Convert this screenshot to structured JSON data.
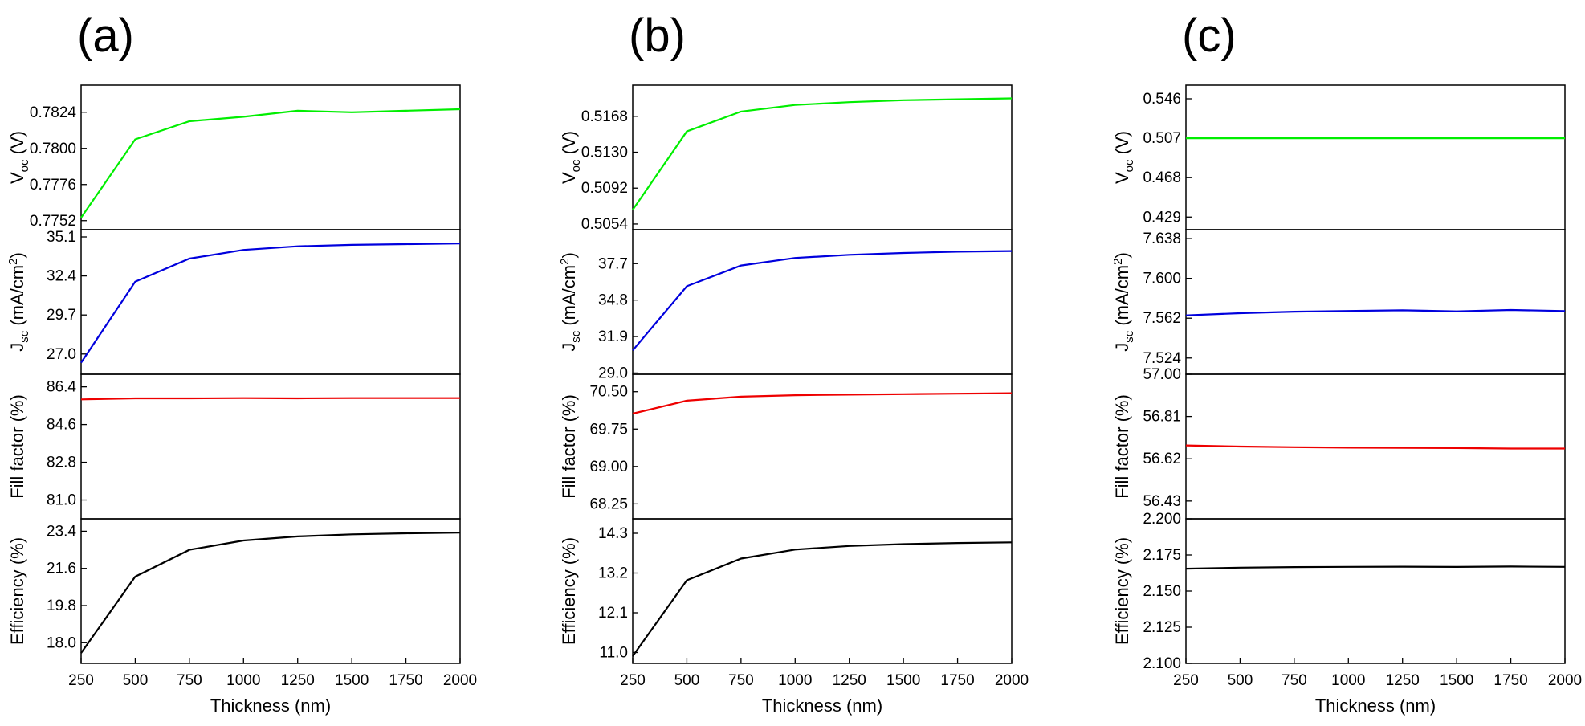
{
  "chart_data": [
    {
      "panel": "(a)",
      "type": "line",
      "xlabel": "Thickness (nm)",
      "x": [
        250,
        500,
        750,
        1000,
        1250,
        1500,
        1750,
        2000
      ],
      "xticks": [
        "250",
        "500",
        "750",
        "1000",
        "1250",
        "1500",
        "1750",
        "2000"
      ],
      "xlim": [
        250,
        2000
      ],
      "subplots": [
        {
          "quantity": "Voc",
          "ylabel_main": "V",
          "ylabel_sub": "oc",
          "ylabel_rest": " (V)",
          "color": "#00ee00",
          "ylim": [
            0.7746,
            0.7842
          ],
          "ticks": [
            0.7752,
            0.7776,
            0.78,
            0.7824
          ],
          "tick_labels": [
            "0.7752",
            "0.7776",
            "0.7800",
            "0.7824"
          ],
          "values": [
            0.7754,
            0.7806,
            0.7818,
            0.7821,
            0.7825,
            0.7824,
            0.7825,
            0.7826
          ]
        },
        {
          "quantity": "Jsc",
          "ylabel_main": "J",
          "ylabel_sub": "sc",
          "ylabel_rest": " (mA/cm",
          "ylabel_sup": "2",
          "ylabel_end": ")",
          "color": "#0000dd",
          "ylim": [
            25.6,
            35.6
          ],
          "ticks": [
            27.0,
            29.7,
            32.4,
            35.1
          ],
          "tick_labels": [
            "27.0",
            "29.7",
            "32.4",
            "35.1"
          ],
          "values": [
            26.4,
            32.0,
            33.6,
            34.2,
            34.45,
            34.55,
            34.6,
            34.65
          ]
        },
        {
          "quantity": "Fill factor",
          "ylabel_main": "Fill factor (%)",
          "color": "#ee0000",
          "ylim": [
            80.1,
            87.0
          ],
          "ticks": [
            81.0,
            82.8,
            84.6,
            86.4
          ],
          "tick_labels": [
            "81.0",
            "82.8",
            "84.6",
            "86.4"
          ],
          "values": [
            85.8,
            85.85,
            85.85,
            85.86,
            85.85,
            85.86,
            85.86,
            85.86
          ]
        },
        {
          "quantity": "Efficiency",
          "ylabel_main": "Efficiency (%)",
          "color": "#000000",
          "ylim": [
            17.0,
            24.0
          ],
          "ticks": [
            18.0,
            19.8,
            21.6,
            23.4
          ],
          "tick_labels": [
            "18.0",
            "19.8",
            "21.6",
            "23.4"
          ],
          "values": [
            17.5,
            21.2,
            22.5,
            22.95,
            23.15,
            23.25,
            23.3,
            23.33
          ]
        }
      ]
    },
    {
      "panel": "(b)",
      "type": "line",
      "xlabel": "Thickness (nm)",
      "x": [
        250,
        500,
        750,
        1000,
        1250,
        1500,
        1750,
        2000
      ],
      "xticks": [
        "250",
        "500",
        "750",
        "1000",
        "1250",
        "1500",
        "1750",
        "2000"
      ],
      "xlim": [
        250,
        2000
      ],
      "subplots": [
        {
          "quantity": "Voc",
          "ylabel_main": "V",
          "ylabel_sub": "oc",
          "ylabel_rest": " (V)",
          "color": "#00ee00",
          "ylim": [
            0.5048,
            0.5201
          ],
          "ticks": [
            0.5054,
            0.5092,
            0.513,
            0.5168
          ],
          "tick_labels": [
            "0.5054",
            "0.5092",
            "0.5130",
            "0.5168"
          ],
          "values": [
            0.5069,
            0.5152,
            0.5173,
            0.518,
            0.5183,
            0.5185,
            0.5186,
            0.5187
          ]
        },
        {
          "quantity": "Jsc",
          "ylabel_main": "J",
          "ylabel_sub": "sc",
          "ylabel_rest": " (mA/cm",
          "ylabel_sup": "2",
          "ylabel_end": ")",
          "color": "#0000dd",
          "ylim": [
            28.9,
            40.4
          ],
          "ticks": [
            29.0,
            31.9,
            34.8,
            37.7
          ],
          "tick_labels": [
            "29.0",
            "31.9",
            "34.8",
            "37.7"
          ],
          "values": [
            30.8,
            35.9,
            37.55,
            38.15,
            38.4,
            38.55,
            38.65,
            38.7
          ]
        },
        {
          "quantity": "Fill factor",
          "ylabel_main": "Fill factor (%)",
          "color": "#ee0000",
          "ylim": [
            67.95,
            70.85
          ],
          "ticks": [
            68.25,
            69.0,
            69.75,
            70.5
          ],
          "tick_labels": [
            "68.25",
            "69.00",
            "69.75",
            "70.50"
          ],
          "values": [
            70.06,
            70.32,
            70.4,
            70.43,
            70.44,
            70.45,
            70.46,
            70.47
          ]
        },
        {
          "quantity": "Efficiency",
          "ylabel_main": "Efficiency (%)",
          "color": "#000000",
          "ylim": [
            10.7,
            14.7
          ],
          "ticks": [
            11.0,
            12.1,
            13.2,
            14.3
          ],
          "tick_labels": [
            "11.0",
            "12.1",
            "13.2",
            "14.3"
          ],
          "values": [
            10.9,
            13.0,
            13.6,
            13.85,
            13.95,
            14.0,
            14.03,
            14.05
          ]
        }
      ]
    },
    {
      "panel": "(c)",
      "type": "line",
      "xlabel": "Thickness (nm)",
      "x": [
        250,
        500,
        750,
        1000,
        1250,
        1500,
        1750,
        2000
      ],
      "xticks": [
        "250",
        "500",
        "750",
        "1000",
        "1250",
        "1500",
        "1750",
        "2000"
      ],
      "xlim": [
        250,
        2000
      ],
      "subplots": [
        {
          "quantity": "Voc",
          "ylabel_main": "V",
          "ylabel_sub": "oc",
          "ylabel_rest": " (V)",
          "color": "#00ee00",
          "ylim": [
            0.4165,
            0.5595
          ],
          "ticks": [
            0.429,
            0.468,
            0.507,
            0.546
          ],
          "tick_labels": [
            "0.429",
            "0.468",
            "0.507",
            "0.546"
          ],
          "values": [
            0.507,
            0.507,
            0.507,
            0.507,
            0.507,
            0.507,
            0.507,
            0.507
          ]
        },
        {
          "quantity": "Jsc",
          "ylabel_main": "J",
          "ylabel_sub": "sc",
          "ylabel_rest": " (mA/cm",
          "ylabel_sup": "2",
          "ylabel_end": ")",
          "color": "#0000dd",
          "ylim": [
            7.5085,
            7.6465
          ],
          "ticks": [
            7.524,
            7.562,
            7.6,
            7.638
          ],
          "tick_labels": [
            "7.524",
            "7.562",
            "7.600",
            "7.638"
          ],
          "values": [
            7.5647,
            7.5668,
            7.5682,
            7.5689,
            7.5695,
            7.5685,
            7.5698,
            7.5688
          ]
        },
        {
          "quantity": "Fill factor",
          "ylabel_main": "Fill factor (%)",
          "color": "#ee0000",
          "ylim": [
            56.35,
            57.0
          ],
          "ticks": [
            56.43,
            56.62,
            56.81,
            57.0
          ],
          "tick_labels": [
            "56.43",
            "56.62",
            "56.81",
            "57.00"
          ],
          "values": [
            56.68,
            56.675,
            56.672,
            56.67,
            56.669,
            56.668,
            56.666,
            56.666
          ]
        },
        {
          "quantity": "Efficiency",
          "ylabel_main": "Efficiency (%)",
          "color": "#000000",
          "ylim": [
            2.1,
            2.2
          ],
          "ticks": [
            2.1,
            2.125,
            2.15,
            2.175,
            2.2
          ],
          "tick_labels": [
            "2.100",
            "2.125",
            "2.150",
            "2.175",
            "2.200"
          ],
          "values": [
            2.1655,
            2.1662,
            2.1666,
            2.1668,
            2.1669,
            2.1667,
            2.167,
            2.1668
          ]
        }
      ]
    }
  ]
}
